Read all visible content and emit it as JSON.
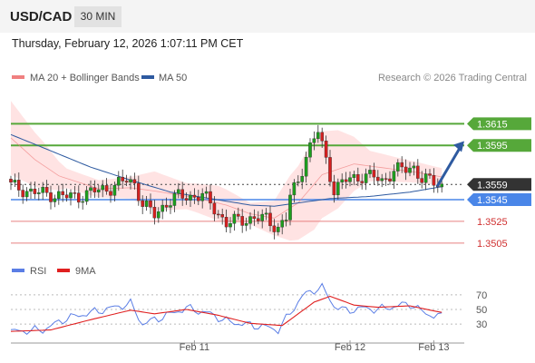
{
  "header": {
    "symbol": "USD/CAD",
    "timeframe": "30 MIN",
    "datetime": "Thursday, February 12, 2026 1:07:11 PM CET"
  },
  "colors": {
    "candle_up": "#1e9e1e",
    "candle_down": "#d42020",
    "bollinger_fill": "#ffdede",
    "ma20": "#f08080",
    "ma50": "#2e5aa0",
    "resistance": "#56a83a",
    "support": "#e88080",
    "current_price": "#333333",
    "pivot": "#4a86e8",
    "arrow": "#2e5aa0",
    "rsi": "#5b7ee5",
    "rsi_ma": "#e02020"
  },
  "chart_data": [
    {
      "type": "candlestick",
      "legend": [
        "MA 20 + Bollinger Bands",
        "MA 50"
      ],
      "watermark": "Research © 2026 Trading Central",
      "ylim": [
        1.3494,
        1.3632
      ],
      "price_levels": [
        {
          "label": "1.3615",
          "value": 1.3615,
          "kind": "resistance"
        },
        {
          "label": "1.3595",
          "value": 1.3595,
          "kind": "resistance"
        },
        {
          "label": "1.3559",
          "value": 1.3559,
          "kind": "current"
        },
        {
          "label": "1.3545",
          "value": 1.3545,
          "kind": "pivot"
        },
        {
          "label": "1.3525",
          "value": 1.3525,
          "kind": "support"
        },
        {
          "label": "1.3505",
          "value": 1.3505,
          "kind": "support"
        }
      ],
      "close_profile": [
        [
          0,
          1.3558
        ],
        [
          5,
          1.3552
        ],
        [
          10,
          1.355
        ],
        [
          13,
          1.3548
        ],
        [
          17,
          1.3548
        ],
        [
          21,
          1.3553
        ],
        [
          25,
          1.3556
        ],
        [
          29,
          1.3563
        ],
        [
          31,
          1.356
        ],
        [
          33,
          1.3541
        ],
        [
          36,
          1.3531
        ],
        [
          39,
          1.3542
        ],
        [
          42,
          1.3548
        ],
        [
          45,
          1.3548
        ],
        [
          48,
          1.3549
        ],
        [
          51,
          1.3537
        ],
        [
          54,
          1.3523
        ],
        [
          57,
          1.3526
        ],
        [
          61,
          1.3528
        ],
        [
          64,
          1.3527
        ],
        [
          67,
          1.3519
        ],
        [
          69,
          1.3528
        ],
        [
          70,
          1.3548
        ],
        [
          72,
          1.3562
        ],
        [
          74,
          1.3586
        ],
        [
          77,
          1.3608
        ],
        [
          79,
          1.3582
        ],
        [
          81,
          1.3554
        ],
        [
          84,
          1.3563
        ],
        [
          88,
          1.3567
        ],
        [
          91,
          1.3566
        ],
        [
          93,
          1.3562
        ],
        [
          96,
          1.3572
        ],
        [
          99,
          1.3573
        ],
        [
          101,
          1.3575
        ],
        [
          103,
          1.3564
        ],
        [
          106,
          1.3561
        ],
        [
          108,
          1.3558
        ]
      ],
      "ma20_profile": [
        [
          0,
          1.3602
        ],
        [
          6,
          1.3582
        ],
        [
          12,
          1.3567
        ],
        [
          22,
          1.3555
        ],
        [
          30,
          1.3556
        ],
        [
          36,
          1.3553
        ],
        [
          46,
          1.3547
        ],
        [
          54,
          1.354
        ],
        [
          60,
          1.3532
        ],
        [
          66,
          1.3528
        ],
        [
          72,
          1.3542
        ],
        [
          78,
          1.3568
        ],
        [
          86,
          1.3578
        ],
        [
          94,
          1.3574
        ],
        [
          102,
          1.357
        ],
        [
          108,
          1.3566
        ]
      ],
      "band_profile": [
        [
          0,
          0.0034
        ],
        [
          8,
          0.0022
        ],
        [
          14,
          0.0009
        ],
        [
          22,
          0.0008
        ],
        [
          30,
          0.001
        ],
        [
          36,
          0.0018
        ],
        [
          44,
          0.0012
        ],
        [
          52,
          0.0016
        ],
        [
          60,
          0.001
        ],
        [
          66,
          0.0016
        ],
        [
          70,
          0.003
        ],
        [
          76,
          0.0042
        ],
        [
          82,
          0.0036
        ],
        [
          90,
          0.0014
        ],
        [
          100,
          0.001
        ],
        [
          108,
          0.0008
        ]
      ],
      "ma50_profile": [
        [
          0,
          1.3605
        ],
        [
          10,
          1.359
        ],
        [
          20,
          1.3575
        ],
        [
          30,
          1.3563
        ],
        [
          40,
          1.3552
        ],
        [
          50,
          1.3546
        ],
        [
          60,
          1.354
        ],
        [
          66,
          1.3539
        ],
        [
          72,
          1.3542
        ],
        [
          80,
          1.3546
        ],
        [
          90,
          1.3548
        ],
        [
          100,
          1.3552
        ],
        [
          108,
          1.3557
        ]
      ],
      "projection": {
        "from": 1.3557,
        "to": 1.3599
      }
    },
    {
      "type": "line",
      "legend": [
        "RSI",
        "9MA"
      ],
      "y_ticks": [
        "70",
        "50",
        "30"
      ],
      "x_ticks": [
        "Feb 11",
        "Feb 12",
        "Feb 13"
      ],
      "ylim": [
        14,
        86
      ],
      "series": [
        {
          "name": "RSI",
          "points": [
            [
              0,
              20
            ],
            [
              8,
              22
            ],
            [
              14,
              38
            ],
            [
              22,
              48
            ],
            [
              30,
              58
            ],
            [
              33,
              30
            ],
            [
              38,
              40
            ],
            [
              44,
              52
            ],
            [
              50,
              44
            ],
            [
              54,
              34
            ],
            [
              58,
              30
            ],
            [
              64,
              26
            ],
            [
              67,
              22
            ],
            [
              70,
              45
            ],
            [
              73,
              68
            ],
            [
              76,
              77
            ],
            [
              78,
              80
            ],
            [
              81,
              55
            ],
            [
              84,
              48
            ],
            [
              88,
              52
            ],
            [
              92,
              50
            ],
            [
              96,
              54
            ],
            [
              100,
              58
            ],
            [
              104,
              44
            ],
            [
              108,
              40
            ]
          ]
        },
        {
          "name": "9MA",
          "points": [
            [
              0,
              20
            ],
            [
              10,
              22
            ],
            [
              20,
              36
            ],
            [
              30,
              49
            ],
            [
              36,
              44
            ],
            [
              44,
              50
            ],
            [
              52,
              42
            ],
            [
              60,
              31
            ],
            [
              68,
              28
            ],
            [
              72,
              44
            ],
            [
              76,
              60
            ],
            [
              80,
              68
            ],
            [
              86,
              56
            ],
            [
              92,
              53
            ],
            [
              100,
              55
            ],
            [
              106,
              48
            ],
            [
              108,
              46
            ]
          ]
        }
      ]
    }
  ]
}
